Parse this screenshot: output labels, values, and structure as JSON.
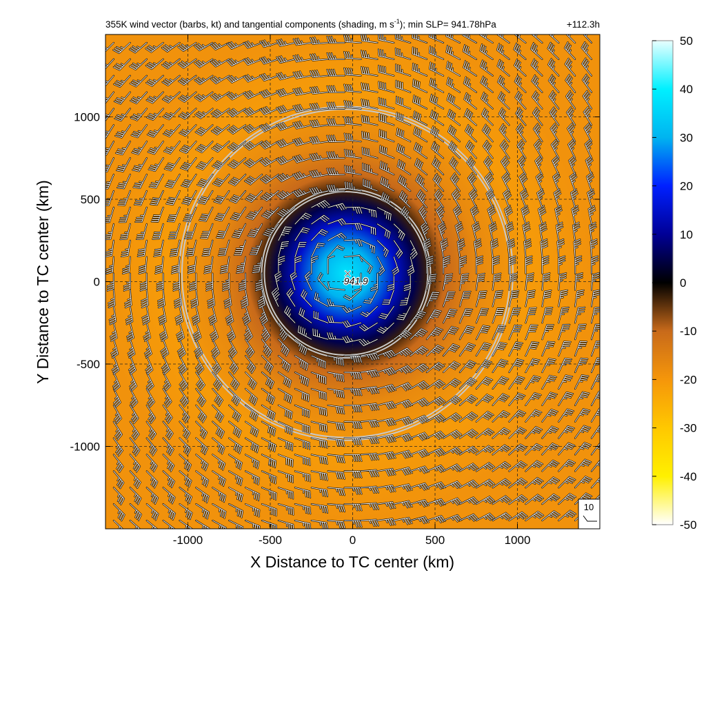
{
  "title": {
    "main": "355K wind vector (barbs, kt) and tangential components (shading, m s",
    "sup": "-1",
    "rest": "); min SLP= 941.78hPa",
    "time": "+112.3h"
  },
  "chart_data": {
    "type": "heatmap",
    "xlabel": "X Distance to TC center (km)",
    "ylabel": "Y Distance to TC center (km)",
    "xlim": [
      -1500,
      1500
    ],
    "ylim": [
      -1500,
      1500
    ],
    "xticks": [
      -1000,
      -500,
      0,
      500,
      1000
    ],
    "yticks": [
      -1000,
      -500,
      0,
      500,
      1000
    ],
    "grid": "dashed",
    "center_marker": {
      "symbol": "×",
      "x": -30,
      "y": 50
    },
    "center_label": {
      "text": "941.9",
      "x": 20,
      "y": 5
    },
    "circles_km": [
      {
        "x": -40,
        "y": 50,
        "r": 500
      },
      {
        "x": -40,
        "y": 50,
        "r": 1000
      }
    ],
    "colorbar": {
      "ticks": [
        50,
        40,
        30,
        20,
        10,
        0,
        -10,
        -20,
        -30,
        -40,
        -50
      ],
      "range": [
        -50,
        50
      ],
      "stops": [
        {
          "v": -50,
          "c": "#ffffff"
        },
        {
          "v": -40,
          "c": "#fff000"
        },
        {
          "v": -30,
          "c": "#ffc800"
        },
        {
          "v": -20,
          "c": "#f5960a"
        },
        {
          "v": -10,
          "c": "#c86a1a"
        },
        {
          "v": 0,
          "c": "#000000"
        },
        {
          "v": 10,
          "c": "#000096"
        },
        {
          "v": 20,
          "c": "#0020ff"
        },
        {
          "v": 30,
          "c": "#00b4f0"
        },
        {
          "v": 40,
          "c": "#00f0ff"
        },
        {
          "v": 50,
          "c": "#e8ffff"
        }
      ]
    },
    "tangential_wind_profile": [
      {
        "r": 0,
        "v": 38
      },
      {
        "r": 150,
        "v": 30
      },
      {
        "r": 300,
        "v": 15
      },
      {
        "r": 420,
        "v": 5
      },
      {
        "r": 500,
        "v": -3
      },
      {
        "r": 600,
        "v": -10
      },
      {
        "r": 800,
        "v": -17
      },
      {
        "r": 1100,
        "v": -21
      },
      {
        "r": 1500,
        "v": -19
      }
    ],
    "reference_barb": {
      "label": "10",
      "speed_kt": 10
    }
  }
}
